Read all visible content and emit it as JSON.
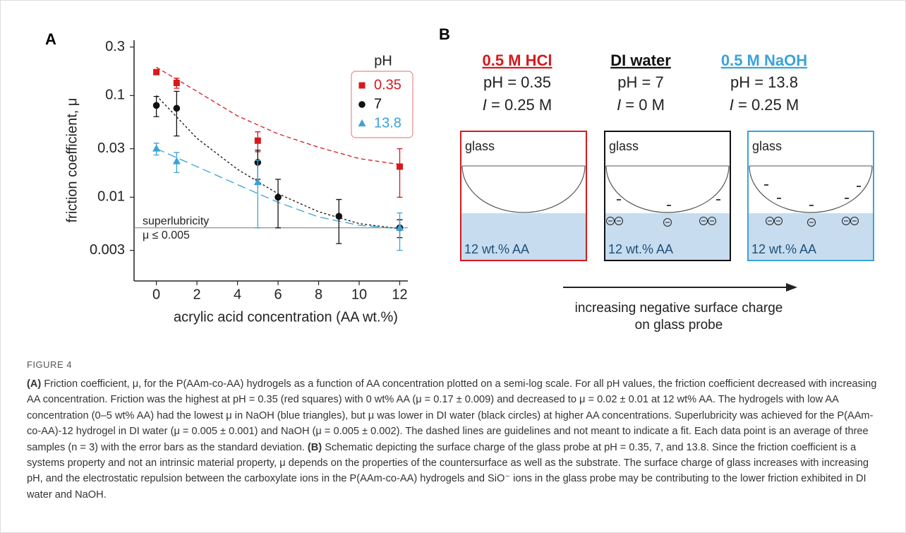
{
  "figure_label": "FIGURE 4",
  "chart_data": {
    "type": "scatter",
    "panel_label": "A",
    "x_label": "acrylic acid concentration (AA wt.%)",
    "y_label": "friction coefficient, μ",
    "y_scale": "log",
    "xlim": [
      -1.1,
      12.4
    ],
    "ylim": [
      0.0015,
      0.35
    ],
    "xticks": [
      0,
      2,
      4,
      6,
      8,
      10,
      12
    ],
    "yticks": [
      0.003,
      0.01,
      0.03,
      0.1,
      0.3
    ],
    "legend_title": "pH",
    "legend": "upper right",
    "series": [
      {
        "name": "0.35",
        "color": "#d7191c",
        "marker": "square",
        "x": [
          0,
          1,
          5,
          12
        ],
        "values": [
          0.17,
          0.133,
          0.036,
          0.02
        ],
        "errors": [
          0.009,
          0.015,
          0.008,
          0.01
        ]
      },
      {
        "name": "7",
        "color": "#111111",
        "marker": "circle",
        "x": [
          0,
          1,
          5,
          6,
          9,
          12
        ],
        "values": [
          0.08,
          0.075,
          0.022,
          0.01,
          0.0065,
          0.005
        ],
        "errors": [
          0.018,
          0.035,
          0.007,
          0.005,
          0.003,
          0.001
        ]
      },
      {
        "name": "13.8",
        "color": "#3ba3d8",
        "marker": "triangle",
        "x": [
          0,
          1,
          5,
          12
        ],
        "values": [
          0.03,
          0.0225,
          0.014,
          0.005
        ],
        "errors": [
          0.004,
          0.005,
          0.009,
          0.002
        ]
      }
    ],
    "guides": [
      {
        "color": "#d7191c",
        "dash": "6 4",
        "x": [
          0,
          2,
          4,
          6,
          8,
          10,
          12
        ],
        "values": [
          0.19,
          0.11,
          0.063,
          0.042,
          0.031,
          0.024,
          0.021
        ]
      },
      {
        "color": "#111111",
        "dash": "3 3",
        "x": [
          0,
          2,
          4,
          6,
          8,
          10,
          12
        ],
        "values": [
          0.1,
          0.038,
          0.0188,
          0.0108,
          0.0072,
          0.0055,
          0.0049
        ]
      },
      {
        "color": "#3ba3d8",
        "dash": "12 6",
        "x": [
          0,
          2,
          4,
          6,
          8,
          10,
          12
        ],
        "values": [
          0.03,
          0.02,
          0.0133,
          0.0089,
          0.0064,
          0.0053,
          0.0049
        ]
      }
    ],
    "threshold": {
      "value": 0.005,
      "color": "#888888",
      "labels": [
        "superlubricity",
        "μ ≤ 0.005"
      ]
    }
  },
  "schematic": {
    "panel_label": "B",
    "columns": [
      {
        "title": "0.5 M HCl",
        "color": "#d7191c",
        "ph": "pH = 0.35",
        "ionic_symbol": "I",
        "ionic": " = 0.25 M",
        "probe": "glass",
        "solution": "12 wt.% AA"
      },
      {
        "title": "DI water",
        "color": "#111111",
        "ph": "pH = 7",
        "ionic_symbol": "I",
        "ionic": " = 0 M",
        "probe": "glass",
        "solution": "12 wt.% AA"
      },
      {
        "title": "0.5 M NaOH",
        "color": "#3ba3d8",
        "ph": "pH = 13.8",
        "ionic_symbol": "I",
        "ionic": " = 0.25 M",
        "probe": "glass",
        "solution": "12 wt.% AA"
      }
    ],
    "arrow_text": [
      "increasing negative surface charge",
      "on glass probe"
    ]
  },
  "caption": {
    "parts": [
      "(A)",
      " Friction coefficient, μ, for the P(AAm-co-AA) hydrogels as a function of AA concentration plotted on a semi-log scale. For all pH values, the friction coefficient decreased with increasing AA concentration. Friction was the highest at pH = 0.35 (red squares) with 0 wt% AA (μ = 0.17 ± 0.009) and decreased to μ = 0.02 ± 0.01 at 12 wt% AA. The hydrogels with low AA concentration (0–5 wt% AA) had the lowest μ in NaOH (blue triangles), but μ was lower in DI water (black circles) at higher AA concentrations. Superlubricity was achieved for the P(AAm-co-AA)-12 hydrogel in DI water (μ = 0.005 ± 0.001) and NaOH (μ = 0.005 ± 0.002). The dashed lines are guidelines and not meant to indicate a fit. Each data point is an average of three samples (n = 3) with the error bars as the standard deviation. ",
      "(B)",
      " Schematic depicting the surface charge of the glass probe at pH = 0.35, 7, and 13.8. Since the friction coefficient is a systems property and not an intrinsic material property, μ depends on the properties of the countersurface as well as the substrate. The surface charge of glass increases with increasing pH, and the electrostatic repulsion between the carboxylate ions in the P(AAm-co-AA) hydrogels and SiO⁻ ions in the glass probe may be contributing to the lower friction exhibited in DI water and NaOH."
    ]
  }
}
